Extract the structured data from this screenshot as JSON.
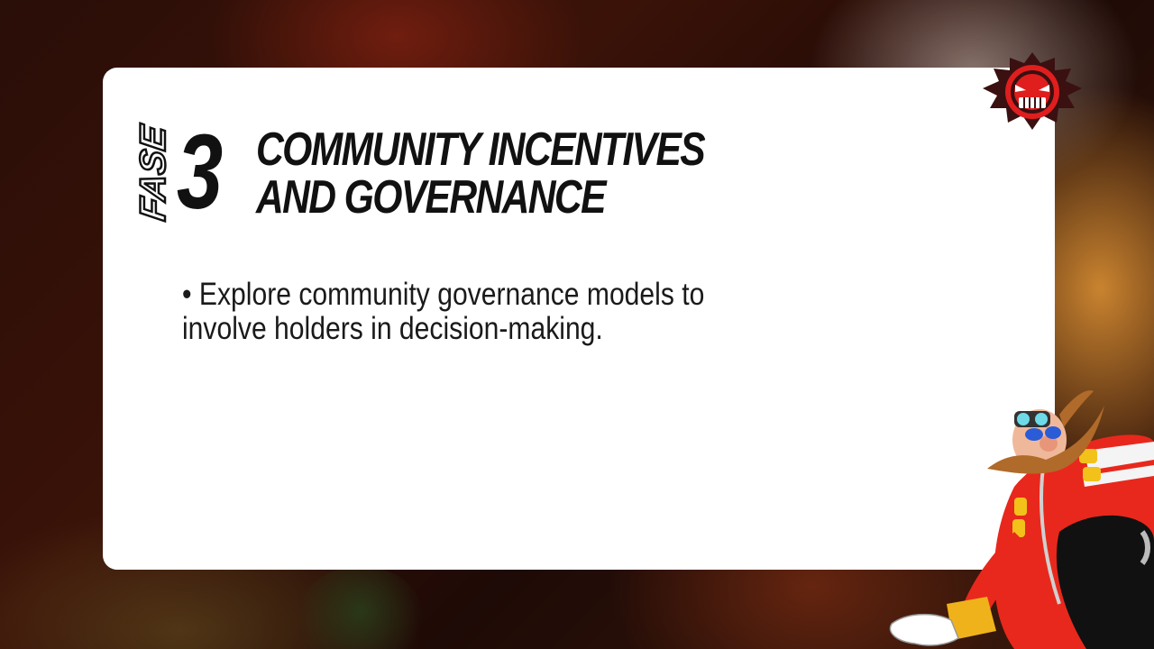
{
  "slide": {
    "phase_prefix": "FASE",
    "phase_number": "3",
    "title_lines": [
      "COMMUNITY INCENTIVES",
      "AND GOVERNANCE"
    ],
    "body_text": "• Explore community governance models to involve holders in decision-making."
  },
  "decorations": {
    "logo_icon": "robot-face-logo-icon",
    "character": "mustached-scientist-character-illustration"
  },
  "colors": {
    "card_background": "#ffffff",
    "title_text": "#111111",
    "logo_red": "#e01e1e",
    "character_red": "#e8281c"
  }
}
